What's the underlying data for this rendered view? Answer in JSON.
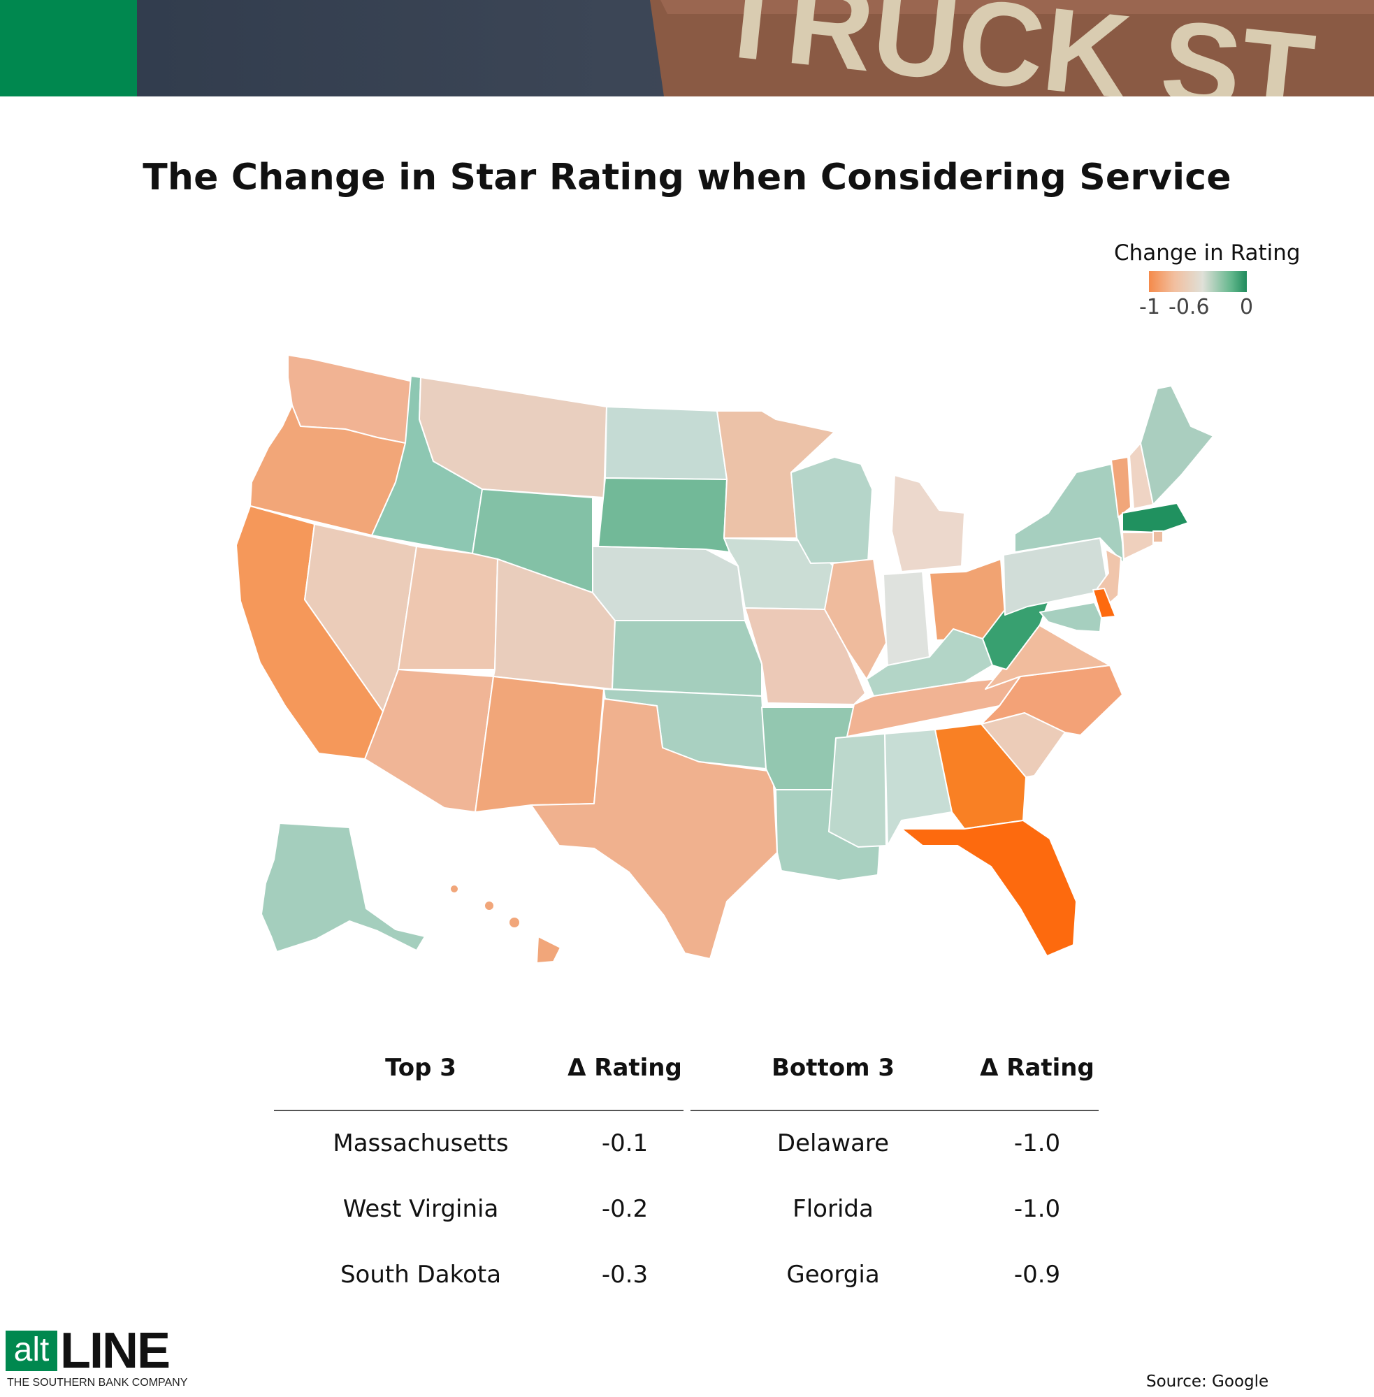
{
  "title": "The Change in Star Rating when Considering Service",
  "legend": {
    "title": "Change in Rating",
    "ticks": [
      "-1",
      "-0.6",
      "0"
    ],
    "range": [
      -1,
      0
    ],
    "low_color": "#fd6a0e",
    "mid_color": "#e8e4df",
    "high_color": "#20915f"
  },
  "banner": {
    "sign_text": "TRUCK ST"
  },
  "map_states": {
    "WA": "#f1b393",
    "OR": "#f2a678",
    "CA": "#f5985a",
    "ID": "#8dc7b2",
    "NV": "#ebccb9",
    "MT": "#e9cfbf",
    "WY": "#83c1a6",
    "UT": "#eec7b0",
    "AZ": "#f0b596",
    "CO": "#e9cdbc",
    "NM": "#f1a679",
    "ND": "#c5dbd4",
    "SD": "#72b998",
    "NE": "#d1ddd8",
    "KS": "#a4cebd",
    "OK": "#a9d0c1",
    "TX": "#f0b18e",
    "MN": "#ecc2a8",
    "IA": "#cbddd5",
    "MO": "#ecc9b7",
    "AR": "#93c7b0",
    "LA": "#a8d0c0",
    "WI": "#b5d5c9",
    "IL": "#efbb9d",
    "MI": "#ecd8cc",
    "IN": "#dfe2de",
    "OH": "#f1a372",
    "KY": "#b3d5c7",
    "TN": "#f1b393",
    "MS": "#bcd8cc",
    "AL": "#c7ddd5",
    "GA": "#f98024",
    "FL": "#fd6a0e",
    "SC": "#ecccb8",
    "NC": "#f3a277",
    "VA": "#f1bc9d",
    "WV": "#38a070",
    "PA": "#d1ddd8",
    "NY": "#a6cfbf",
    "VT": "#f1a67a",
    "NH": "#efd4c4",
    "ME": "#aacebf",
    "MA": "#20915f",
    "RI": "#ecbda0",
    "CT": "#efd0bd",
    "NJ": "#f0c5ab",
    "DE": "#fd6a0e",
    "MD": "#a6cfbf",
    "AK": "#a4cebd",
    "HI": "#f1a67a"
  },
  "table": {
    "top": {
      "header_state": "Top 3",
      "header_value": "Δ Rating",
      "rows": [
        {
          "state": "Massachusetts",
          "value": "-0.1"
        },
        {
          "state": "West Virginia",
          "value": "-0.2"
        },
        {
          "state": "South Dakota",
          "value": "-0.3"
        }
      ]
    },
    "bottom": {
      "header_state": "Bottom 3",
      "header_value": "Δ Rating",
      "rows": [
        {
          "state": "Delaware",
          "value": "-1.0"
        },
        {
          "state": "Florida",
          "value": "-1.0"
        },
        {
          "state": "Georgia",
          "value": "-0.9"
        }
      ]
    }
  },
  "source": "Source: Google",
  "logo": {
    "alt": "alt",
    "line": "LINE",
    "tagline": "THE SOUTHERN BANK COMPANY"
  }
}
